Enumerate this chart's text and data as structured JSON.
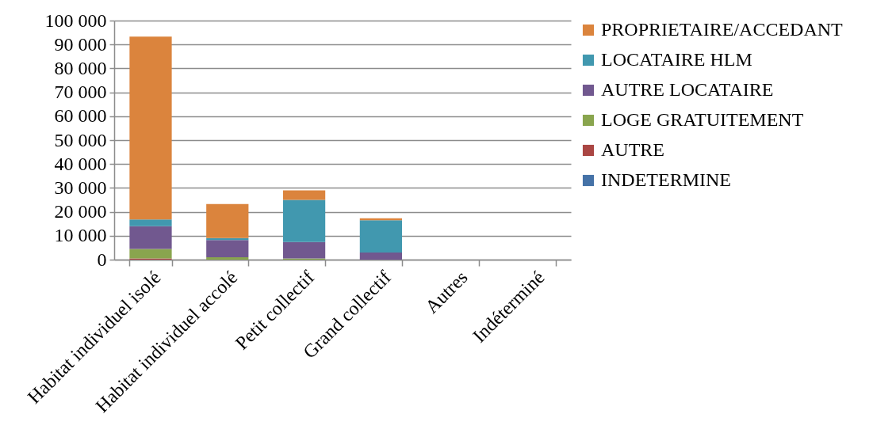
{
  "chart_data": {
    "type": "bar",
    "stacked": true,
    "categories": [
      "Habitat individuel isolé",
      "Habitat individuel accolé",
      "Petit collectif",
      "Grand collectif",
      "Autres",
      "Indéterminé"
    ],
    "series": [
      {
        "name": "INDETERMINE",
        "color": "#4572a7",
        "values": [
          0,
          0,
          0,
          0,
          0,
          0
        ]
      },
      {
        "name": "AUTRE",
        "color": "#aa4643",
        "values": [
          500,
          0,
          0,
          0,
          0,
          0
        ]
      },
      {
        "name": "LOGE GRATUITEMENT",
        "color": "#89a54e",
        "values": [
          4000,
          1000,
          500,
          0,
          0,
          0
        ]
      },
      {
        "name": "AUTRE LOCATAIRE",
        "color": "#71588f",
        "values": [
          9500,
          7200,
          6900,
          3000,
          0,
          0
        ]
      },
      {
        "name": "LOCATAIRE HLM",
        "color": "#4198af",
        "values": [
          2800,
          800,
          17600,
          13500,
          0,
          0
        ]
      },
      {
        "name": "PROPRIETAIRE/ACCEDANT",
        "color": "#db843d",
        "values": [
          76500,
          14300,
          4000,
          800,
          0,
          0
        ]
      }
    ],
    "ylim": [
      0,
      100000
    ],
    "yticks": [
      {
        "value": 0,
        "label": "0"
      },
      {
        "value": 10000,
        "label": "10 000"
      },
      {
        "value": 20000,
        "label": "20 000"
      },
      {
        "value": 30000,
        "label": "30 000"
      },
      {
        "value": 40000,
        "label": "40 000"
      },
      {
        "value": 50000,
        "label": "50 000"
      },
      {
        "value": 60000,
        "label": "60 000"
      },
      {
        "value": 70000,
        "label": "70 000"
      },
      {
        "value": 80000,
        "label": "80 000"
      },
      {
        "value": 90000,
        "label": "90 000"
      },
      {
        "value": 100000,
        "label": "100 000"
      }
    ],
    "grid": "y",
    "legend": "right"
  }
}
